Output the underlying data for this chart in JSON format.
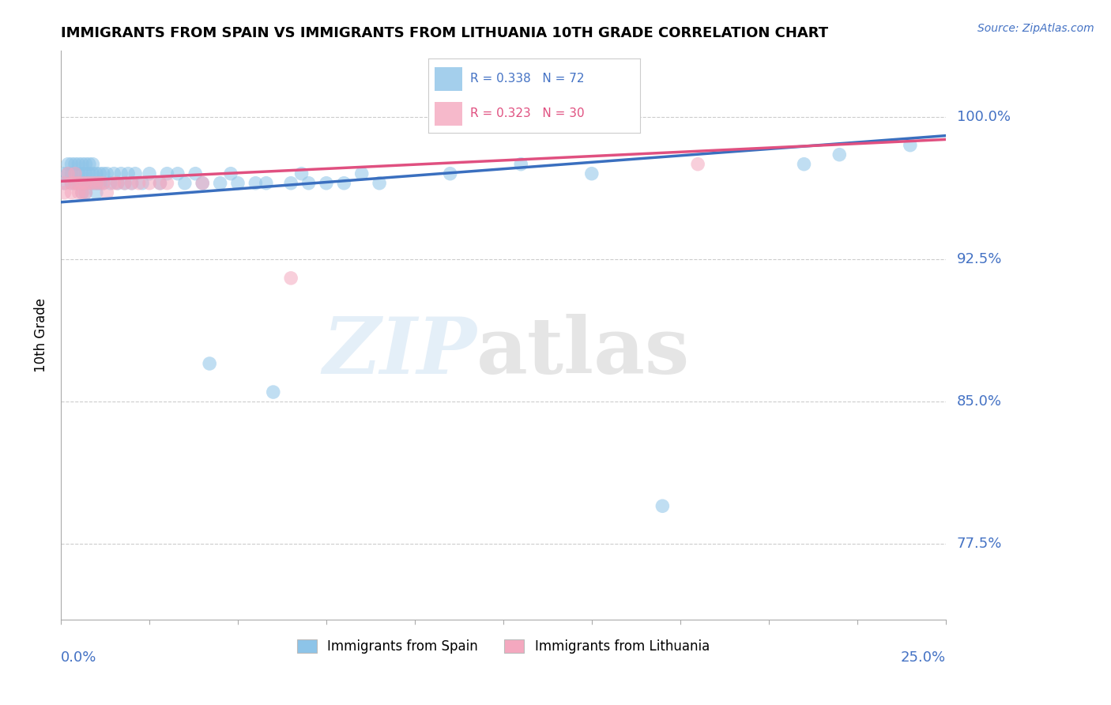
{
  "title": "IMMIGRANTS FROM SPAIN VS IMMIGRANTS FROM LITHUANIA 10TH GRADE CORRELATION CHART",
  "source_text": "Source: ZipAtlas.com",
  "ylabel": "10th Grade",
  "yaxis_labels": [
    "77.5%",
    "85.0%",
    "92.5%",
    "100.0%"
  ],
  "yaxis_values": [
    0.775,
    0.85,
    0.925,
    1.0
  ],
  "xmin": 0.0,
  "xmax": 0.25,
  "ymin": 0.735,
  "ymax": 1.035,
  "color_spain": "#8dc4e8",
  "color_lithuania": "#f4a8bf",
  "color_trendline_spain": "#3a6fbf",
  "color_trendline_lithuania": "#e05080",
  "spain_x": [
    0.001,
    0.001,
    0.002,
    0.002,
    0.003,
    0.003,
    0.003,
    0.004,
    0.004,
    0.004,
    0.005,
    0.005,
    0.005,
    0.006,
    0.006,
    0.006,
    0.006,
    0.007,
    0.007,
    0.007,
    0.007,
    0.008,
    0.008,
    0.008,
    0.009,
    0.009,
    0.009,
    0.01,
    0.01,
    0.01,
    0.011,
    0.011,
    0.012,
    0.012,
    0.013,
    0.014,
    0.015,
    0.016,
    0.017,
    0.018,
    0.019,
    0.02,
    0.021,
    0.023,
    0.025,
    0.028,
    0.03,
    0.033,
    0.035,
    0.038,
    0.04,
    0.042,
    0.045,
    0.048,
    0.05,
    0.055,
    0.058,
    0.06,
    0.065,
    0.068,
    0.07,
    0.075,
    0.08,
    0.085,
    0.09,
    0.11,
    0.13,
    0.15,
    0.17,
    0.21,
    0.22,
    0.24
  ],
  "spain_y": [
    0.97,
    0.965,
    0.975,
    0.97,
    0.975,
    0.97,
    0.965,
    0.975,
    0.97,
    0.965,
    0.975,
    0.97,
    0.965,
    0.975,
    0.97,
    0.965,
    0.96,
    0.975,
    0.97,
    0.965,
    0.96,
    0.975,
    0.97,
    0.965,
    0.975,
    0.97,
    0.965,
    0.97,
    0.965,
    0.96,
    0.97,
    0.965,
    0.97,
    0.965,
    0.97,
    0.965,
    0.97,
    0.965,
    0.97,
    0.965,
    0.97,
    0.965,
    0.97,
    0.965,
    0.97,
    0.965,
    0.97,
    0.97,
    0.965,
    0.97,
    0.965,
    0.87,
    0.965,
    0.97,
    0.965,
    0.965,
    0.965,
    0.855,
    0.965,
    0.97,
    0.965,
    0.965,
    0.965,
    0.97,
    0.965,
    0.97,
    0.975,
    0.97,
    0.795,
    0.975,
    0.98,
    0.985
  ],
  "lithuania_x": [
    0.001,
    0.001,
    0.002,
    0.003,
    0.003,
    0.004,
    0.004,
    0.005,
    0.005,
    0.006,
    0.006,
    0.007,
    0.007,
    0.008,
    0.009,
    0.01,
    0.011,
    0.012,
    0.013,
    0.015,
    0.016,
    0.018,
    0.02,
    0.022,
    0.025,
    0.028,
    0.03,
    0.04,
    0.065,
    0.18
  ],
  "lithuania_y": [
    0.965,
    0.96,
    0.97,
    0.965,
    0.96,
    0.97,
    0.965,
    0.96,
    0.965,
    0.965,
    0.96,
    0.965,
    0.96,
    0.965,
    0.965,
    0.965,
    0.965,
    0.965,
    0.96,
    0.965,
    0.965,
    0.965,
    0.965,
    0.965,
    0.965,
    0.965,
    0.965,
    0.965,
    0.915,
    0.975
  ],
  "trendline_spain_x0": 0.0,
  "trendline_spain_y0": 0.955,
  "trendline_spain_x1": 0.25,
  "trendline_spain_y1": 0.99,
  "trendline_lith_x0": 0.0,
  "trendline_lith_y0": 0.966,
  "trendline_lith_x1": 0.25,
  "trendline_lith_y1": 0.988
}
